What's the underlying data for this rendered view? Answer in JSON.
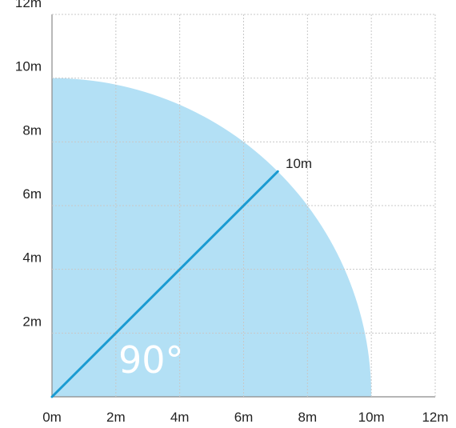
{
  "diagram": {
    "unit": "m",
    "axis_max": 12,
    "tick_step": 2,
    "x_ticks": [
      "0m",
      "2m",
      "4m",
      "6m",
      "8m",
      "10m",
      "12m"
    ],
    "y_ticks": [
      "2m",
      "4m",
      "6m",
      "8m",
      "10m",
      "12m"
    ],
    "sector": {
      "radius": 10,
      "start_angle_deg": 0,
      "end_angle_deg": 90,
      "fill_color": "#b3e0f5"
    },
    "radius_line": {
      "angle_deg": 45,
      "length": 10,
      "color": "#1a9bd2"
    },
    "radius_label": "10m",
    "angle_label": "90°"
  }
}
